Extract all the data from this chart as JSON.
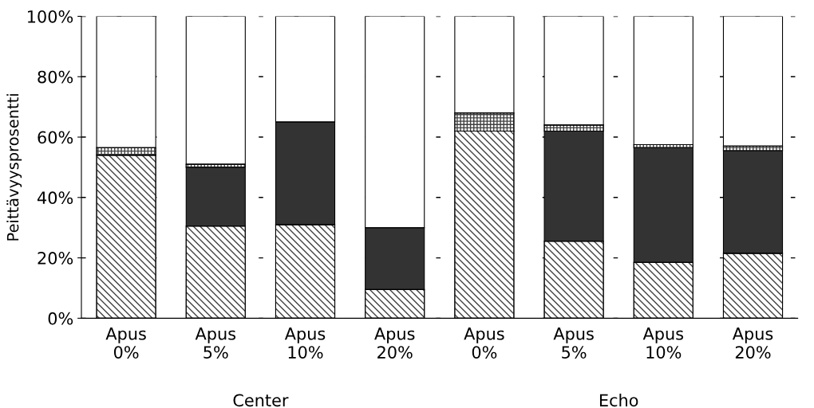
{
  "chart_data": {
    "type": "bar",
    "stacked": true,
    "ylabel": "Peittävyysprosentti",
    "categories": [
      "Apus\n0%",
      "Apus\n5%",
      "Apus\n10%",
      "Apus\n20%",
      "Apus\n0%",
      "Apus\n5%",
      "Apus\n10%",
      "Apus\n20%"
    ],
    "series": [
      {
        "color": "#404040",
        "values": [
          54,
          30.5,
          31,
          9.5,
          62,
          25.5,
          18.5,
          21.5
        ]
      },
      {
        "color": "#333333",
        "values": [
          0,
          19.5,
          34,
          20.5,
          0,
          36.5,
          38,
          34
        ]
      },
      {
        "color": "#404040",
        "values": [
          2.5,
          1,
          0,
          0,
          6,
          2,
          1,
          1.5
        ]
      },
      {
        "color": "#ffffff",
        "values": [
          43.5,
          49,
          35,
          70,
          32,
          36,
          42.5,
          43
        ]
      }
    ],
    "ylim": [
      0,
      100
    ],
    "yticks": [
      {
        "value": 0,
        "label": "0%"
      },
      {
        "value": 20,
        "label": "20%"
      },
      {
        "value": 40,
        "label": "40%"
      },
      {
        "value": 60,
        "label": "60%"
      },
      {
        "value": 80,
        "label": "80%"
      },
      {
        "value": 100,
        "label": "100%"
      }
    ],
    "grid": "y",
    "annotations": [
      "Center",
      "Echo"
    ]
  }
}
